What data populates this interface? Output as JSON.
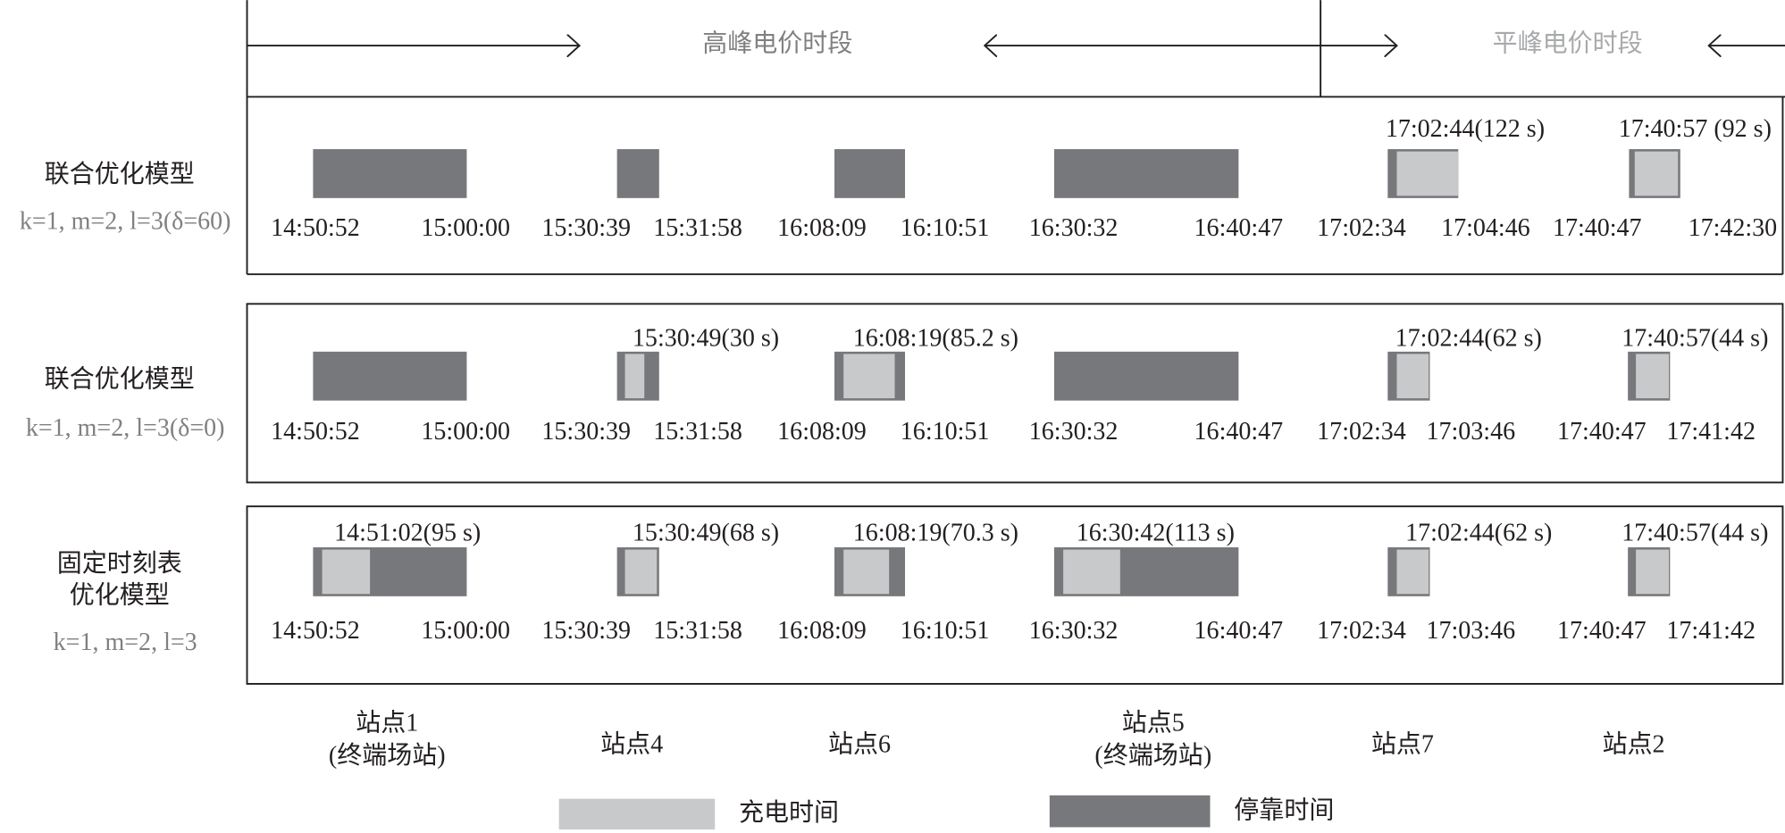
{
  "header": {
    "peak": "高峰电价时段",
    "flat": "平峰电价时段"
  },
  "rows": [
    {
      "title": [
        "联合优化模型"
      ],
      "params": "k=1, m=2, l=3(δ=60)",
      "times": [
        "14:50:52",
        "15:00:00",
        "15:30:39",
        "15:31:58",
        "16:08:09",
        "16:10:51",
        "16:30:32",
        "16:40:47",
        "17:02:34",
        "17:04:46",
        "17:40:47",
        "17:42:30"
      ],
      "annotations": [
        "17:02:44(122 s)",
        "17:40:57 (92 s)"
      ]
    },
    {
      "title": [
        "联合优化模型"
      ],
      "params": "k=1, m=2, l=3(δ=0)",
      "times": [
        "14:50:52",
        "15:00:00",
        "15:30:39",
        "15:31:58",
        "16:08:09",
        "16:10:51",
        "16:30:32",
        "16:40:47",
        "17:02:34",
        "17:03:46",
        "17:40:47",
        "17:41:42"
      ],
      "annotations": [
        "15:30:49(30 s)",
        "16:08:19(85.2 s)",
        "17:02:44(62 s)",
        "17:40:57(44 s)"
      ]
    },
    {
      "title": [
        "固定时刻表",
        "优化模型"
      ],
      "params": "k=1, m=2, l=3",
      "times": [
        "14:50:52",
        "15:00:00",
        "15:30:39",
        "15:31:58",
        "16:08:09",
        "16:10:51",
        "16:30:32",
        "16:40:47",
        "17:02:34",
        "17:03:46",
        "17:40:47",
        "17:41:42"
      ],
      "annotations": [
        "14:51:02(95 s)",
        "15:30:49(68 s)",
        "16:08:19(70.3 s)",
        "16:30:42(113 s)",
        "17:02:44(62 s)",
        "17:40:57(44 s)"
      ]
    }
  ],
  "stations": [
    [
      "站点1",
      "(终端场站)"
    ],
    [
      "站点4"
    ],
    [
      "站点6"
    ],
    [
      "站点5",
      "(终端场站)"
    ],
    [
      "站点7"
    ],
    [
      "站点2"
    ]
  ],
  "legend": {
    "charging": "充电时间",
    "dwell": "停靠时间"
  }
}
